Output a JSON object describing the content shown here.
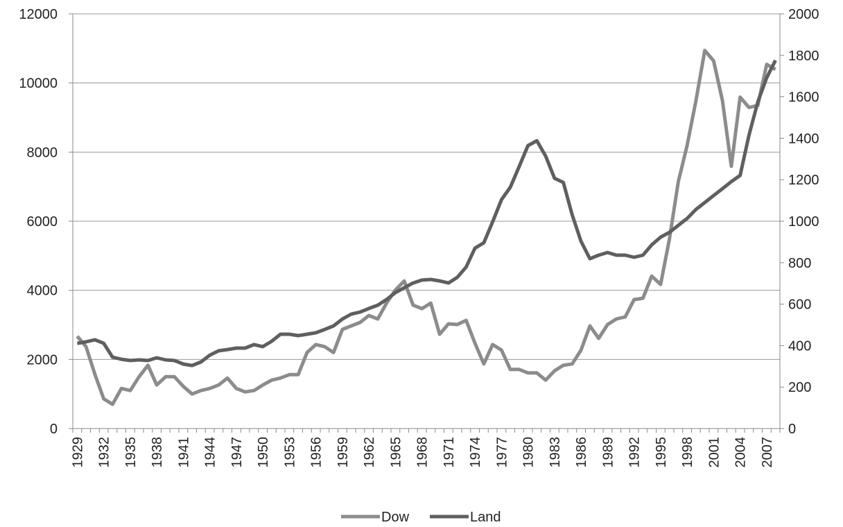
{
  "chart_data": {
    "type": "line",
    "categories": [
      "1929",
      null,
      null,
      "1932",
      null,
      null,
      "1935",
      null,
      null,
      "1938",
      null,
      null,
      "1941",
      null,
      null,
      "1944",
      null,
      null,
      "1947",
      null,
      null,
      "1950",
      null,
      null,
      "1953",
      null,
      null,
      "1956",
      null,
      null,
      "1959",
      null,
      null,
      "1962",
      null,
      null,
      "1965",
      null,
      null,
      "1968",
      null,
      null,
      "1971",
      null,
      null,
      "1974",
      null,
      null,
      "1977",
      null,
      null,
      "1980",
      null,
      null,
      "1983",
      null,
      null,
      "1986",
      null,
      null,
      "1989",
      null,
      null,
      "1992",
      null,
      null,
      "1995",
      null,
      null,
      "1998",
      null,
      null,
      "2001",
      null,
      null,
      "2004",
      null,
      null,
      "2007",
      null
    ],
    "series": [
      {
        "name": "Dow",
        "color": "#8c8c8c",
        "values": [
          2670,
          2370,
          1570,
          860,
          700,
          1160,
          1100,
          1500,
          1830,
          1260,
          1500,
          1500,
          1220,
          1000,
          1100,
          1160,
          1260,
          1460,
          1160,
          1060,
          1100,
          1260,
          1400,
          1460,
          1560,
          1560,
          2200,
          2430,
          2370,
          2200,
          2870,
          2970,
          3070,
          3270,
          3170,
          3630,
          4010,
          4270,
          3570,
          3470,
          3630,
          2730,
          3030,
          3010,
          3130,
          2470,
          1870,
          2430,
          2270,
          1710,
          1710,
          1610,
          1610,
          1400,
          1670,
          1830,
          1870,
          2270,
          2970,
          2610,
          3010,
          3170,
          3230,
          3730,
          3770,
          4410,
          4170,
          5480,
          7140,
          8190,
          9490,
          10940,
          10640,
          9490,
          7590,
          9590,
          9290,
          9350,
          10540,
          10390
        ]
      },
      {
        "name": "Land",
        "color": "#5f5f5f",
        "axis": "y2",
        "values": [
          411,
          418,
          428,
          411,
          344,
          334,
          328,
          331,
          328,
          341,
          331,
          328,
          311,
          304,
          321,
          354,
          375,
          381,
          388,
          388,
          405,
          395,
          421,
          455,
          455,
          448,
          455,
          462,
          478,
          495,
          528,
          552,
          562,
          579,
          595,
          622,
          656,
          679,
          702,
          716,
          719,
          712,
          702,
          729,
          779,
          870,
          896,
          997,
          1104,
          1164,
          1264,
          1365,
          1388,
          1314,
          1207,
          1187,
          1030,
          903,
          819,
          836,
          849,
          836,
          836,
          826,
          836,
          886,
          923,
          946,
          980,
          1013,
          1057,
          1090,
          1124,
          1157,
          1191,
          1221,
          1415,
          1575,
          1692,
          1776
        ]
      }
    ],
    "ylim": [
      0,
      12000
    ],
    "yticks": [
      0,
      2000,
      4000,
      6000,
      8000,
      10000,
      12000
    ],
    "y2lim": [
      0,
      2000
    ],
    "y2ticks": [
      0,
      200,
      400,
      600,
      800,
      1000,
      1200,
      1400,
      1600,
      1800,
      2000
    ],
    "grid": true,
    "legend": "bottom"
  }
}
